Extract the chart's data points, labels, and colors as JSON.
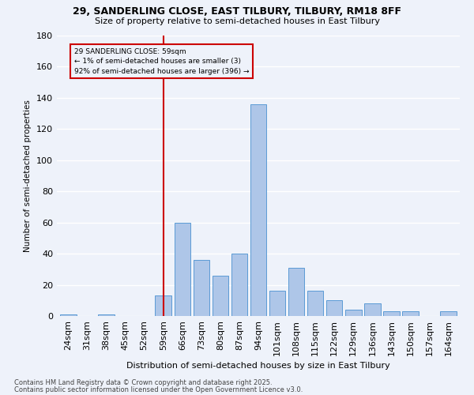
{
  "title1": "29, SANDERLING CLOSE, EAST TILBURY, TILBURY, RM18 8FF",
  "title2": "Size of property relative to semi-detached houses in East Tilbury",
  "xlabel": "Distribution of semi-detached houses by size in East Tilbury",
  "ylabel": "Number of semi-detached properties",
  "categories": [
    "24sqm",
    "31sqm",
    "38sqm",
    "45sqm",
    "52sqm",
    "59sqm",
    "66sqm",
    "73sqm",
    "80sqm",
    "87sqm",
    "94sqm",
    "101sqm",
    "108sqm",
    "115sqm",
    "122sqm",
    "129sqm",
    "136sqm",
    "143sqm",
    "150sqm",
    "157sqm",
    "164sqm"
  ],
  "values": [
    1,
    0,
    1,
    0,
    0,
    13,
    60,
    36,
    26,
    40,
    136,
    16,
    31,
    16,
    10,
    4,
    8,
    3,
    3,
    0,
    3
  ],
  "bar_color": "#aec6e8",
  "bar_edge_color": "#5b9bd5",
  "vline_index": 5,
  "vline_color": "#cc0000",
  "annotation_title": "29 SANDERLING CLOSE: 59sqm",
  "annotation_line1": "← 1% of semi-detached houses are smaller (3)",
  "annotation_line2": "92% of semi-detached houses are larger (396) →",
  "annotation_box_color": "#cc0000",
  "ylim": [
    0,
    180
  ],
  "yticks": [
    0,
    20,
    40,
    60,
    80,
    100,
    120,
    140,
    160,
    180
  ],
  "bg_color": "#eef2fa",
  "grid_color": "#ffffff",
  "footer1": "Contains HM Land Registry data © Crown copyright and database right 2025.",
  "footer2": "Contains public sector information licensed under the Open Government Licence v3.0."
}
